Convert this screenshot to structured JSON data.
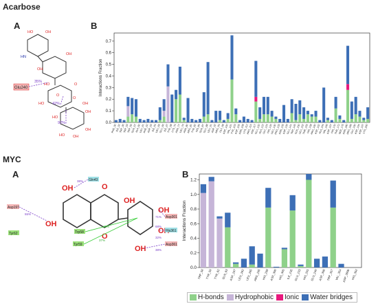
{
  "labels": {
    "section_top": "Acarbose",
    "section_bottom": "MYC",
    "panel_a": "A",
    "panel_b": "B",
    "panel_a2": "A",
    "panel_b2": "B"
  },
  "molecule_acarbose": {
    "residue": "Glu240",
    "pcts": [
      "35%",
      "42%",
      "92%"
    ],
    "atoms": [
      "HO",
      "OH",
      "HN",
      "OH",
      "OH",
      "HO",
      "O",
      "O",
      "HO",
      "OH",
      "HO",
      "OH",
      "OH",
      "HO",
      "OH",
      "O"
    ]
  },
  "molecule_myc": {
    "residues": [
      "Gln43",
      "Asp197",
      "Tyr62",
      "Trp58",
      "Tyr59",
      "Asp301",
      "His361",
      "Asp361"
    ],
    "pcts": [
      "38%",
      "55%",
      "71%",
      "46%",
      "37%",
      "68%",
      "32%",
      "38%"
    ],
    "atoms": [
      "OH",
      "O",
      "OH",
      "OH",
      "O",
      "OH",
      "OH",
      "OH"
    ]
  },
  "colors": {
    "hbond": "#8fd18a",
    "hydrophobic": "#c6b5d8",
    "ionic": "#e8197d",
    "water": "#3d6fb6",
    "residue_box": "#f4b6b6",
    "residue_green": "#9be07a",
    "residue_cyan": "#9fe0e6"
  },
  "chart_data": [
    {
      "type": "bar",
      "stacked": true,
      "ylabel": "Interactions Fraction",
      "ylim": [
        0,
        0.77
      ],
      "yticks": [
        "0.0",
        "0.1",
        "0.2",
        "0.3",
        "0.4",
        "0.5",
        "0.6",
        "0.7"
      ],
      "grid": false,
      "categories": [
        "PHE_30",
        "ILE_32",
        "TRP_36",
        "TRP_53",
        "TRP_56",
        "GLN_57",
        "ALA_60",
        "LEU_61",
        "PHE_62",
        "ASP_63",
        "ILE_64",
        "LEU_65",
        "GLU_66",
        "ILE_67",
        "TYR_68",
        "LYS_74",
        "ASN_77",
        "LEU_79",
        "ASN_80",
        "ARG_81",
        "TYR_82",
        "HIS_84",
        "GLN_87",
        "GLU_88",
        "LEU_91",
        "ASP_92",
        "ARG_94",
        "GLY_98",
        "ASP_100",
        "VAL_101",
        "TYR_103",
        "ASP_105",
        "ASN_108",
        "LYS_112",
        "ARG_115",
        "ASP_117",
        "GLU_120",
        "ALA_122",
        "GLY_124",
        "HIS_126",
        "LEU_130",
        "PRO_133",
        "ASN_135",
        "ASP_139",
        "GLU_141",
        "TRP_145",
        "GLN_150",
        "LEU_152",
        "THR_155",
        "HIS_158",
        "ARG_160",
        "ASP_162",
        "ALA_164",
        "VAL_166",
        "ASP_167",
        "HIS_170",
        "THR_172",
        "SER_175",
        "ASN_180",
        "ARG_185",
        "GLY_190",
        "ASP_194",
        "ASP_197",
        "LYS_200"
      ],
      "series": [
        {
          "name": "H-bonds",
          "values": [
            0,
            0,
            0,
            0.05,
            0.07,
            0.05,
            0,
            0,
            0,
            0,
            0,
            0.02,
            0.05,
            0,
            0,
            0.2,
            0.24,
            0.02,
            0,
            0,
            0,
            0,
            0.05,
            0.07,
            0,
            0,
            0.02,
            0,
            0.03,
            0.37,
            0.07,
            0,
            0,
            0,
            0,
            0.18,
            0.03,
            0.07,
            0.07,
            0.05,
            0.03,
            0,
            0,
            0,
            0.08,
            0.02,
            0.07,
            0.03,
            0.07,
            0.05,
            0.05,
            0,
            0,
            0.02,
            0,
            0.12,
            0.03,
            0,
            0.28,
            0.03,
            0.07,
            0.05,
            0.02,
            0.03
          ]
        },
        {
          "name": "Hydrophobic",
          "values": [
            0,
            0,
            0,
            0.09,
            0,
            0,
            0,
            0,
            0,
            0,
            0,
            0,
            0.05,
            0.31,
            0,
            0,
            0,
            0,
            0,
            0,
            0,
            0,
            0,
            0,
            0,
            0,
            0,
            0,
            0,
            0,
            0,
            0,
            0,
            0,
            0,
            0,
            0,
            0,
            0,
            0,
            0,
            0,
            0,
            0,
            0,
            0,
            0,
            0,
            0,
            0,
            0,
            0,
            0,
            0,
            0,
            0,
            0,
            0,
            0,
            0,
            0,
            0,
            0,
            0
          ]
        },
        {
          "name": "Ionic",
          "values": [
            0,
            0,
            0,
            0,
            0,
            0,
            0,
            0,
            0,
            0,
            0,
            0,
            0,
            0,
            0,
            0,
            0,
            0,
            0,
            0,
            0,
            0,
            0,
            0,
            0,
            0,
            0,
            0,
            0,
            0,
            0,
            0,
            0,
            0,
            0,
            0.04,
            0,
            0,
            0,
            0,
            0,
            0,
            0,
            0,
            0,
            0,
            0,
            0,
            0,
            0,
            0,
            0,
            0,
            0,
            0,
            0,
            0,
            0,
            0.05,
            0,
            0,
            0,
            0,
            0
          ]
        },
        {
          "name": "Water bridges",
          "values": [
            0.02,
            0.03,
            0.02,
            0.08,
            0.14,
            0.15,
            0.03,
            0.02,
            0.03,
            0.02,
            0.02,
            0.11,
            0.1,
            0.19,
            0.24,
            0.08,
            0.24,
            0.02,
            0.21,
            0.03,
            0.02,
            0.03,
            0.21,
            0.45,
            0.02,
            0.1,
            0.08,
            0.02,
            0.05,
            0.38,
            0.05,
            0.02,
            0.05,
            0.03,
            0.02,
            0.31,
            0.1,
            0.15,
            0.15,
            0.05,
            0.02,
            0.03,
            0.15,
            0.03,
            0.12,
            0.14,
            0.12,
            0.1,
            0.03,
            0.02,
            0.05,
            0.02,
            0.3,
            0.02,
            0.02,
            0.1,
            0.03,
            0.02,
            0.33,
            0.15,
            0.15,
            0.05,
            0.02,
            0.1
          ]
        }
      ]
    },
    {
      "type": "bar",
      "stacked": true,
      "ylabel": "Interactions Fraction",
      "ylim": [
        0,
        1.28
      ],
      "yticks": [
        "0.0",
        "0.2",
        "0.4",
        "0.6",
        "0.8",
        "1.0",
        "1.2"
      ],
      "grid": false,
      "categories": [
        "TRP_58",
        "TYR_59",
        "TYR_62",
        "GLN_63",
        "ASP_197",
        "LEU_162",
        "LEU_165",
        "ARG_195",
        "HIS_299",
        "ASP_300",
        "HIS_305",
        "ILE_235",
        "GLU_233",
        "HIS_201",
        "GLU_240",
        "ASP_356",
        "TRP_357",
        "VAL_354",
        "ASP_300b",
        "HIS_352"
      ],
      "series": [
        {
          "name": "H-bonds",
          "values": [
            0,
            0,
            0,
            0.55,
            0.05,
            0,
            0.04,
            0,
            0.82,
            0,
            0.25,
            0.78,
            0.02,
            1.2,
            0,
            0,
            0.82,
            0,
            0,
            0
          ]
        },
        {
          "name": "Hydrophobic",
          "values": [
            1.02,
            1.18,
            0.67,
            0,
            0,
            0,
            0,
            0,
            0,
            0,
            0,
            0,
            0,
            0,
            0,
            0,
            0,
            0,
            0,
            0
          ]
        },
        {
          "name": "Ionic",
          "values": [
            0,
            0,
            0,
            0,
            0,
            0,
            0,
            0,
            0,
            0,
            0,
            0,
            0,
            0,
            0,
            0,
            0,
            0,
            0,
            0
          ]
        },
        {
          "name": "Water bridges",
          "values": [
            0.12,
            0.06,
            0.03,
            0.2,
            0.02,
            0.12,
            0.25,
            0.19,
            0.27,
            0.01,
            0.02,
            0.21,
            0.02,
            0.08,
            0.12,
            0.15,
            0.37,
            0.05,
            0,
            0
          ]
        }
      ],
      "legend": [
        "H-bonds",
        "Hydrophobic",
        "Ionic",
        "Water bridges"
      ],
      "legend_position": "bottom"
    }
  ]
}
